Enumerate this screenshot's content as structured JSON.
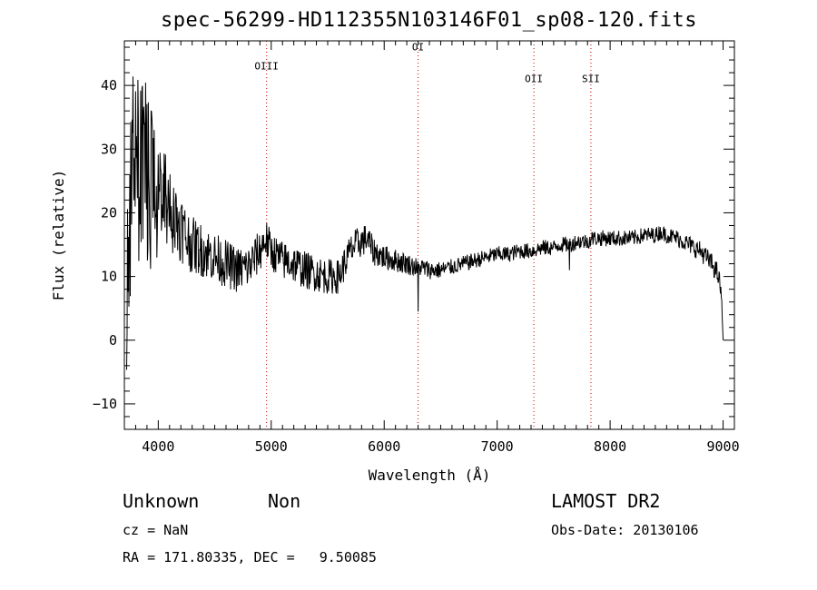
{
  "title": "spec-56299-HD112355N103146F01_sp08-120.fits",
  "info": {
    "class_label": "Unknown",
    "subclass_label": "Non",
    "survey": "LAMOST DR2",
    "cz": "cz = NaN",
    "obs_date": "Obs-Date: 20130106",
    "coords": "RA = 171.80335, DEC =   9.50085"
  },
  "chart_data": {
    "type": "line",
    "xlabel": "Wavelength (Å)",
    "ylabel": "Flux (relative)",
    "xlim": [
      3700,
      9100
    ],
    "ylim": [
      -14,
      47
    ],
    "x_ticks": [
      4000,
      5000,
      6000,
      7000,
      8000,
      9000
    ],
    "y_ticks": [
      -10,
      0,
      10,
      20,
      30,
      40
    ],
    "grid": false,
    "lines": [
      {
        "label": "OIII",
        "wavelength": 4959,
        "label_flux": 42.5
      },
      {
        "label": "OI",
        "wavelength": 6300,
        "label_flux": 45.5
      },
      {
        "label": "OII",
        "wavelength": 7325,
        "label_flux": 40.5
      },
      {
        "label": "SII",
        "wavelength": 7830,
        "label_flux": 40.5
      }
    ],
    "line_colors": {
      "spectrum": "#000000",
      "marker": "#cc0000"
    },
    "spectrum_anchors": {
      "x": [
        3720,
        3760,
        3800,
        3850,
        3900,
        3950,
        4000,
        4050,
        4100,
        4150,
        4200,
        4250,
        4300,
        4400,
        4500,
        4600,
        4700,
        4800,
        4900,
        4950,
        5000,
        5100,
        5200,
        5300,
        5400,
        5500,
        5600,
        5650,
        5700,
        5750,
        5800,
        5850,
        5900,
        6000,
        6100,
        6200,
        6280,
        6300,
        6320,
        6400,
        6500,
        6600,
        6700,
        6800,
        6900,
        7000,
        7100,
        7200,
        7300,
        7400,
        7500,
        7550,
        7600,
        7650,
        7700,
        7750,
        7800,
        7850,
        7900,
        8000,
        8100,
        8200,
        8300,
        8400,
        8450,
        8500,
        8600,
        8700,
        8800,
        8850,
        8900,
        8950,
        8980,
        9000
      ],
      "y": [
        8,
        25,
        28,
        26,
        25,
        24,
        23,
        22,
        21,
        19,
        18,
        16,
        15,
        14,
        13,
        12,
        11,
        11.5,
        14,
        16,
        14,
        12.5,
        12,
        11,
        10.5,
        10,
        10,
        12,
        14,
        15,
        15.5,
        16,
        14,
        13,
        12.5,
        12,
        11.5,
        11,
        11.5,
        11,
        11,
        11.5,
        12,
        12.5,
        13,
        13.5,
        13.5,
        14,
        14,
        14.5,
        14.5,
        15,
        15,
        15,
        15.5,
        15.5,
        15.5,
        16,
        16,
        16,
        16,
        16,
        16.5,
        16.5,
        17,
        16.5,
        16,
        15,
        14,
        13,
        12,
        10.5,
        8,
        0
      ]
    },
    "noise_anchors": {
      "x": [
        3720,
        3800,
        3900,
        4000,
        4100,
        4200,
        4300,
        4500,
        4700,
        4900,
        5000,
        5200,
        5500,
        5800,
        6000,
        6300,
        6600,
        7000,
        7500,
        8000,
        8500,
        8800,
        9000
      ],
      "y": [
        10,
        12,
        11,
        7,
        5,
        4,
        3.2,
        2.8,
        2.6,
        2.4,
        2.2,
        2.2,
        2.0,
        1.8,
        1.4,
        1.1,
        0.9,
        0.9,
        0.9,
        0.9,
        0.9,
        1.1,
        1.2
      ]
    }
  }
}
